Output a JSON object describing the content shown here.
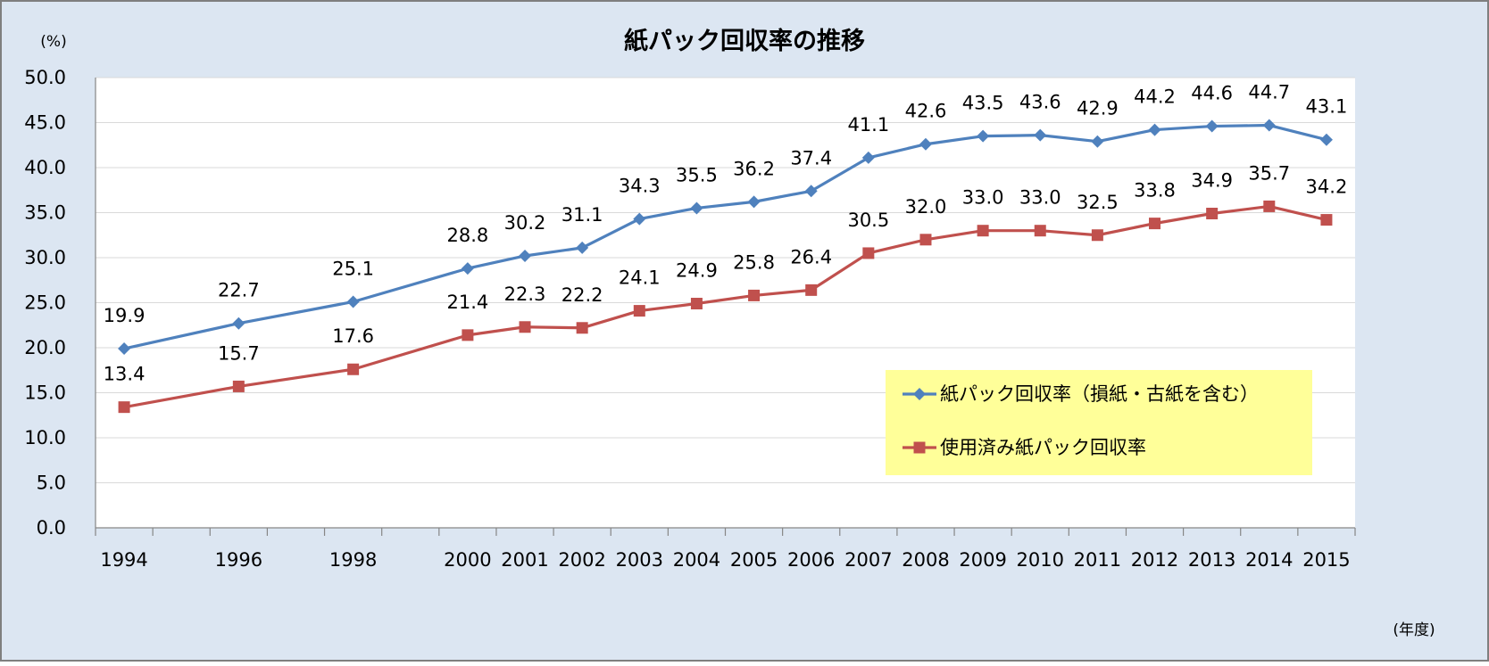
{
  "chart_data": {
    "type": "line",
    "title": "紙パック回収率の推移",
    "ylabel": "(%)",
    "xlabel": "(年度)",
    "ylim": [
      0,
      50
    ],
    "y_ticks": [
      "0.0",
      "5.0",
      "10.0",
      "15.0",
      "20.0",
      "25.0",
      "30.0",
      "35.0",
      "40.0",
      "45.0",
      "50.0"
    ],
    "x_ticks": [
      "1994",
      "1996",
      "1998",
      "2000",
      "2001",
      "2002",
      "2003",
      "2004",
      "2005",
      "2006",
      "2007",
      "2008",
      "2009",
      "2010",
      "2011",
      "2012",
      "2013",
      "2014",
      "2015"
    ],
    "x_range": [
      1994,
      2015
    ],
    "grid": true,
    "legend_position": "bottom-right",
    "series": [
      {
        "name": "紙パック回収率（損紙・古紙を含む）",
        "color": "#4F81BD",
        "marker": "diamond",
        "x": [
          1994,
          1996,
          1998,
          2000,
          2001,
          2002,
          2003,
          2004,
          2005,
          2006,
          2007,
          2008,
          2009,
          2010,
          2011,
          2012,
          2013,
          2014,
          2015
        ],
        "values": [
          19.9,
          22.7,
          25.1,
          28.8,
          30.2,
          31.1,
          34.3,
          35.5,
          36.2,
          37.4,
          41.1,
          42.6,
          43.5,
          43.6,
          42.9,
          44.2,
          44.6,
          44.7,
          43.1
        ],
        "labels": [
          "19.9",
          "22.7",
          "25.1",
          "28.8",
          "30.2",
          "31.1",
          "34.3",
          "35.5",
          "36.2",
          "37.4",
          "41.1",
          "42.6",
          "43.5",
          "43.6",
          "42.9",
          "44.2",
          "44.6",
          "44.7",
          "43.1"
        ]
      },
      {
        "name": "使用済み紙パック回収率",
        "color": "#C0504D",
        "marker": "square",
        "x": [
          1994,
          1996,
          1998,
          2000,
          2001,
          2002,
          2003,
          2004,
          2005,
          2006,
          2007,
          2008,
          2009,
          2010,
          2011,
          2012,
          2013,
          2014,
          2015
        ],
        "values": [
          13.4,
          15.7,
          17.6,
          21.4,
          22.3,
          22.2,
          24.1,
          24.9,
          25.8,
          26.4,
          30.5,
          32.0,
          33.0,
          33.0,
          32.5,
          33.8,
          34.9,
          35.7,
          34.2
        ],
        "labels": [
          "13.4",
          "15.7",
          "17.6",
          "21.4",
          "22.3",
          "22.2",
          "24.1",
          "24.9",
          "25.8",
          "26.4",
          "30.5",
          "32.0",
          "33.0",
          "33.0",
          "32.5",
          "33.8",
          "34.9",
          "35.7",
          "34.2"
        ]
      }
    ],
    "colors": {
      "background": "#DCE6F2",
      "plot_background": "#FFFFFF",
      "legend_background": "#FFFF99",
      "border": "#7F7F7F",
      "grid": "#D9D9D9"
    }
  }
}
